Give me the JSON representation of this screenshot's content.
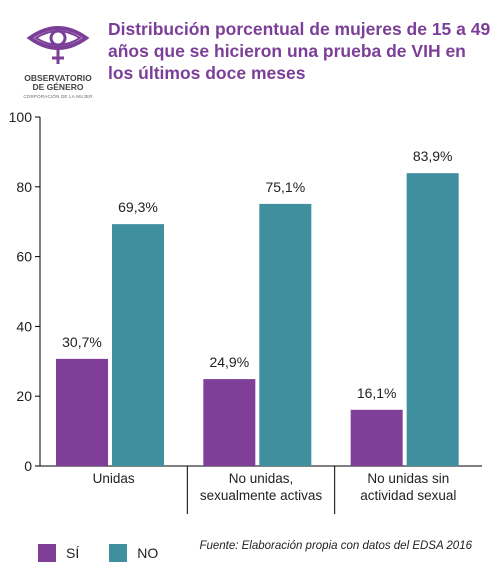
{
  "logo": {
    "name_line1": "OBSERVATORIO",
    "name_line2": "DE GÉNERO",
    "subtitle": "CORPORACIÓN DE LA MUJER",
    "accent_color": "#7b3f98"
  },
  "chart_data": {
    "type": "bar",
    "title": "Distribución porcentual de mujeres de 15 a 49 años que se hicieron una prueba de VIH en los últimos doce meses",
    "categories": [
      [
        "Unidas"
      ],
      [
        "No unidas,",
        "sexualmente activas"
      ],
      [
        "No unidas sin",
        "actividad sexual"
      ]
    ],
    "series": [
      {
        "name": "SÍ",
        "color": "#7f3f98",
        "values": [
          30.7,
          24.9,
          16.1
        ],
        "labels": [
          "30,7%",
          "24,9%",
          "16,1%"
        ]
      },
      {
        "name": "NO",
        "color": "#3f8f9f",
        "values": [
          69.3,
          75.1,
          83.9
        ],
        "labels": [
          "69,3%",
          "75,1%",
          "83,9%"
        ]
      }
    ],
    "ylim": [
      0,
      100
    ],
    "yticks": [
      0,
      20,
      40,
      60,
      80,
      100
    ],
    "grid": false,
    "legend_position": "bottom-left"
  },
  "source": "Fuente: Elaboración propia con datos del EDSA 2016"
}
